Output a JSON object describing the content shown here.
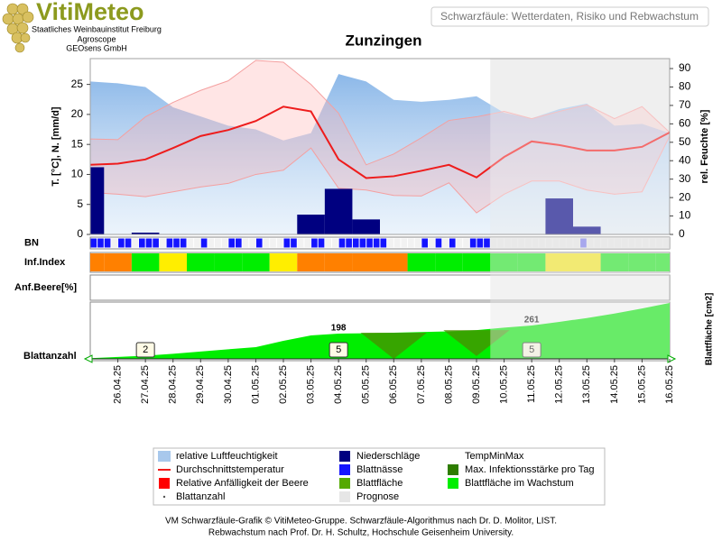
{
  "header": {
    "brand": "VitiMeteo",
    "institutions": [
      "Staatliches Weinbauinstitut Freiburg",
      "Agroscope",
      "GEOsens GmbH"
    ],
    "subtitle": "Schwarzfäule: Wetterdaten, Risiko und Rebwachstum"
  },
  "chart_data": {
    "type": "vitimeteo",
    "title": "Zunzingen",
    "categories": [
      null,
      "26.04.25",
      "27.04.25",
      "28.04.25",
      "29.04.25",
      "30.04.25",
      "01.05.25",
      "02.05.25",
      "03.05.25",
      "04.05.25",
      "05.05.25",
      "06.05.25",
      "07.05.25",
      "08.05.25",
      "09.05.25",
      "10.05.25",
      "11.05.25",
      "12.05.25",
      "13.05.25",
      "14.05.25",
      "15.05.25",
      "16.05.25"
    ],
    "forecast_from": "10.05.25",
    "forecast_color": "#e6e6e6",
    "y_label": "T. [°C], N. [mm/d]",
    "y2_label": "rel. Feuchte [%]",
    "ylim": [
      0,
      29.3
    ],
    "yticks": [
      0,
      5,
      10,
      15,
      20,
      25
    ],
    "y2lim": [
      0,
      95.4
    ],
    "y2ticks": [
      0,
      10,
      20,
      30,
      40,
      50,
      60,
      70,
      80,
      90
    ],
    "humidity": {
      "axis": "y2",
      "color": "#8ab8ea",
      "values": [
        83,
        82,
        80,
        69,
        64,
        59,
        57,
        51,
        55,
        87,
        83,
        73,
        72,
        73,
        75,
        66,
        63,
        68,
        71,
        59,
        60,
        55
      ]
    },
    "temp_max": {
      "color": "#f4a0a0",
      "values": [
        15.9,
        15.8,
        19.6,
        22.0,
        24.0,
        25.6,
        29.0,
        28.7,
        25.0,
        20.2,
        11.6,
        13.4,
        16.1,
        19.0,
        19.6,
        20.5,
        19.3,
        20.5,
        21.6,
        19.3,
        21.3,
        17.0
      ]
    },
    "temp_min": {
      "color": "#f4a0a0",
      "values": [
        7.0,
        6.7,
        6.3,
        7.1,
        7.9,
        8.5,
        10.0,
        10.7,
        14.4,
        7.7,
        7.4,
        6.5,
        6.4,
        8.6,
        3.6,
        6.7,
        8.9,
        8.9,
        7.4,
        6.7,
        7.1,
        16.4
      ]
    },
    "temp_avg": {
      "color": "#ee1c1c",
      "values": [
        11.6,
        11.8,
        12.5,
        14.4,
        16.4,
        17.4,
        18.9,
        21.3,
        20.5,
        12.5,
        9.4,
        9.7,
        10.6,
        11.6,
        9.5,
        12.9,
        15.5,
        14.9,
        14.0,
        14.0,
        14.6,
        17.0
      ]
    },
    "precipitation": {
      "color": "#000080",
      "values": [
        11.2,
        0,
        0.3,
        0,
        0,
        0,
        0,
        0,
        3.3,
        7.6,
        2.5,
        0,
        0,
        0,
        0,
        0,
        0,
        6.0,
        1.3,
        0,
        0,
        0
      ]
    },
    "leaf_wetness": {
      "label": "BN",
      "colors": [
        "#f2f2f2",
        "#1414ff"
      ],
      "values": [
        1,
        1,
        1,
        0,
        1,
        1,
        0,
        1,
        1,
        1,
        0,
        1,
        1,
        1,
        0,
        0,
        1,
        0,
        0,
        0,
        1,
        1,
        0,
        0,
        1,
        0,
        0,
        0,
        1,
        1,
        0,
        0,
        1,
        1,
        0,
        0,
        1,
        1,
        1,
        1,
        1,
        1,
        1,
        0,
        0,
        0,
        0,
        0,
        1,
        0,
        1,
        0,
        1,
        0,
        0,
        1,
        1,
        1,
        0,
        0,
        0,
        0,
        0,
        0,
        0,
        0,
        0,
        0,
        0,
        0,
        0,
        1,
        0,
        0,
        0,
        0,
        0,
        0,
        0,
        0,
        0,
        0,
        0,
        0
      ]
    },
    "infection_index": {
      "label": "Inf.Index",
      "colors": [
        "#00ee00",
        "#ffee00",
        "#ff8000"
      ],
      "values": [
        2,
        2,
        0,
        1,
        0,
        0,
        0,
        1,
        2,
        2,
        2,
        2,
        0,
        0,
        0,
        0,
        0,
        1,
        1,
        0,
        0,
        0
      ]
    },
    "berry_susceptibility": {
      "label": "Anf.Beere[%]"
    },
    "growth": {
      "label": "Blattanzahl",
      "y2_label": "Blattfläche [cm2]",
      "ylim": [
        0,
        445
      ],
      "leaf_area": {
        "color": "#00ee00",
        "values": [
          5,
          15,
          25,
          40,
          57,
          75,
          92,
          141,
          184,
          198,
          200,
          205,
          210,
          215,
          225,
          245,
          261,
          290,
          320,
          355,
          395,
          438
        ],
        "value_labels": [
          null,
          null,
          null,
          null,
          null,
          null,
          null,
          null,
          null,
          "198",
          null,
          null,
          null,
          null,
          null,
          null,
          "261",
          null,
          null,
          null,
          null,
          null
        ]
      },
      "leaf_count": {
        "values": [
          null,
          null,
          2,
          null,
          null,
          null,
          null,
          null,
          null,
          5,
          null,
          null,
          null,
          null,
          null,
          null,
          5,
          null,
          null,
          null,
          null,
          null
        ]
      },
      "infection_max": {
        "color": "#4a8c00",
        "values": [
          null,
          null,
          null,
          null,
          null,
          null,
          null,
          null,
          null,
          null,
          null,
          1,
          null,
          null,
          0.9,
          null,
          null,
          null,
          null,
          null,
          null,
          null
        ]
      }
    }
  },
  "legend": [
    {
      "label": "relative Luftfeuchtigkeit",
      "color": "#a8c8ec",
      "symbol": "area"
    },
    {
      "label": "Durchschnittstemperatur",
      "color": "#ee1c1c",
      "symbol": "line"
    },
    {
      "label": "Relative Anfälligkeit der Beere",
      "color": "#ff0000",
      "symbol": "box"
    },
    {
      "label": "Blattanzahl",
      "color": "#555555",
      "symbol": "dot"
    },
    {
      "label": "Niederschläge",
      "color": "#000080",
      "symbol": "box"
    },
    {
      "label": "Blattnässe",
      "color": "#1414ff",
      "symbol": "box"
    },
    {
      "label": "Blattfläche",
      "color": "#55aa00",
      "symbol": "box"
    },
    {
      "label": "Prognose",
      "color": "#e6e6e6",
      "symbol": "box"
    },
    {
      "label": "TempMinMax",
      "color": "#ffffff",
      "symbol": "none"
    },
    {
      "label": "Max. Infektionsstärke pro Tag",
      "color": "#2e7d00",
      "symbol": "box"
    },
    {
      "label": "Blattfläche im Wachstum",
      "color": "#00ee00",
      "symbol": "box"
    }
  ],
  "footer": [
    "VM Schwarzfäule-Grafik © VitiMeteo-Gruppe. Schwarzfäule-Algorithmus nach Dr. D. Molitor, LIST.",
    "Rebwachstum nach Prof. Dr. H. Schultz, Hochschule Geisenheim University."
  ]
}
